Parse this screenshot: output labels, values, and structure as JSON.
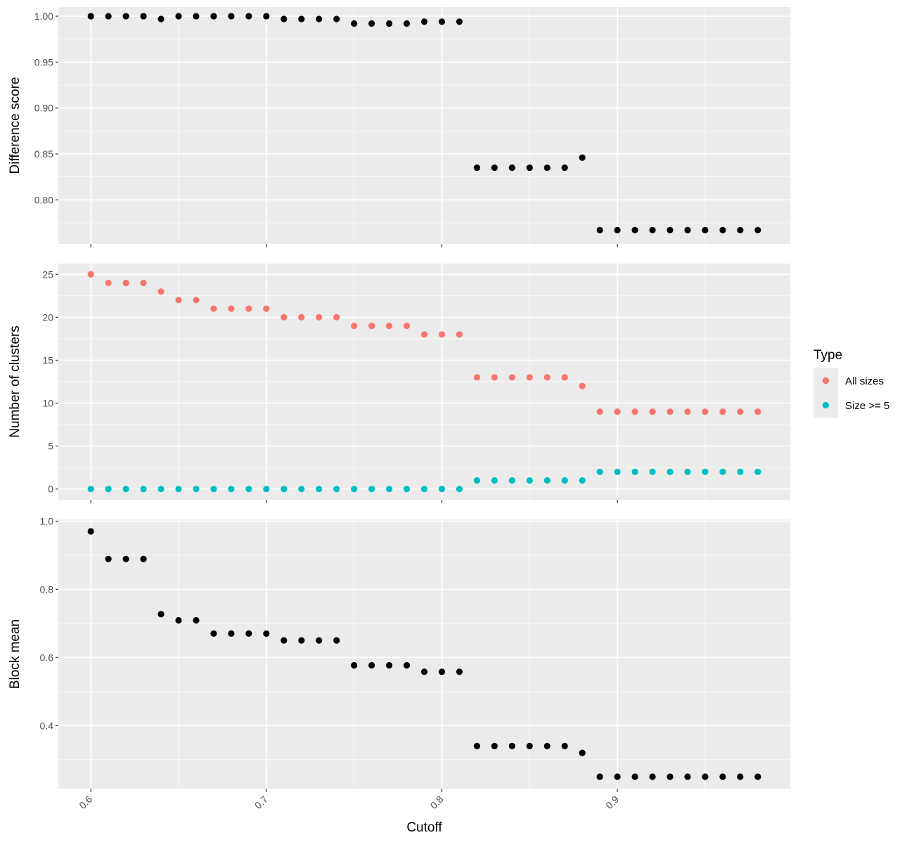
{
  "chart_data": [
    {
      "type": "scatter",
      "panel": "top",
      "ylabel": "Difference score",
      "xlim": [
        0.5815,
        0.9985
      ],
      "ylim": [
        0.752,
        1.01
      ],
      "y_ticks": [
        0.8,
        0.85,
        0.9,
        0.95,
        1.0
      ],
      "y_tick_labels": [
        "0.80",
        "0.85",
        "0.90",
        "0.95",
        "1.00"
      ],
      "grid": true,
      "point_color": "#000000",
      "x": [
        0.6,
        0.61,
        0.62,
        0.63,
        0.64,
        0.65,
        0.66,
        0.67,
        0.68,
        0.69,
        0.7,
        0.71,
        0.72,
        0.73,
        0.74,
        0.75,
        0.76,
        0.77,
        0.78,
        0.79,
        0.8,
        0.81,
        0.82,
        0.83,
        0.84,
        0.85,
        0.86,
        0.87,
        0.88,
        0.89,
        0.9,
        0.91,
        0.92,
        0.93,
        0.94,
        0.95,
        0.96,
        0.97,
        0.98
      ],
      "y": [
        1.0,
        1.0,
        1.0,
        1.0,
        0.997,
        1.0,
        1.0,
        1.0,
        1.0,
        1.0,
        1.0,
        0.997,
        0.997,
        0.997,
        0.997,
        0.992,
        0.992,
        0.992,
        0.992,
        0.994,
        0.994,
        0.994,
        0.835,
        0.835,
        0.835,
        0.835,
        0.835,
        0.835,
        0.846,
        0.767,
        0.767,
        0.767,
        0.767,
        0.767,
        0.767,
        0.767,
        0.767,
        0.767,
        0.767
      ]
    },
    {
      "type": "scatter",
      "panel": "middle",
      "ylabel": "Number of clusters",
      "xlim": [
        0.5815,
        0.9985
      ],
      "ylim": [
        -1.25,
        26.25
      ],
      "y_ticks": [
        0,
        5,
        10,
        15,
        20,
        25
      ],
      "y_tick_labels": [
        "0",
        "5",
        "10",
        "15",
        "20",
        "25"
      ],
      "grid": true,
      "series": [
        {
          "name": "All sizes",
          "color": "#F8766D",
          "x": [
            0.6,
            0.61,
            0.62,
            0.63,
            0.64,
            0.65,
            0.66,
            0.67,
            0.68,
            0.69,
            0.7,
            0.71,
            0.72,
            0.73,
            0.74,
            0.75,
            0.76,
            0.77,
            0.78,
            0.79,
            0.8,
            0.81,
            0.82,
            0.83,
            0.84,
            0.85,
            0.86,
            0.87,
            0.88,
            0.89,
            0.9,
            0.91,
            0.92,
            0.93,
            0.94,
            0.95,
            0.96,
            0.97,
            0.98
          ],
          "y": [
            25,
            24,
            24,
            24,
            23,
            22,
            22,
            21,
            21,
            21,
            21,
            20,
            20,
            20,
            20,
            19,
            19,
            19,
            19,
            18,
            18,
            18,
            13,
            13,
            13,
            13,
            13,
            13,
            12,
            9,
            9,
            9,
            9,
            9,
            9,
            9,
            9,
            9,
            9
          ]
        },
        {
          "name": "Size >= 5",
          "color": "#00BFC4",
          "x": [
            0.6,
            0.61,
            0.62,
            0.63,
            0.64,
            0.65,
            0.66,
            0.67,
            0.68,
            0.69,
            0.7,
            0.71,
            0.72,
            0.73,
            0.74,
            0.75,
            0.76,
            0.77,
            0.78,
            0.79,
            0.8,
            0.81,
            0.82,
            0.83,
            0.84,
            0.85,
            0.86,
            0.87,
            0.88,
            0.89,
            0.9,
            0.91,
            0.92,
            0.93,
            0.94,
            0.95,
            0.96,
            0.97,
            0.98
          ],
          "y": [
            0,
            0,
            0,
            0,
            0,
            0,
            0,
            0,
            0,
            0,
            0,
            0,
            0,
            0,
            0,
            0,
            0,
            0,
            0,
            0,
            0,
            0,
            1,
            1,
            1,
            1,
            1,
            1,
            1,
            2,
            2,
            2,
            2,
            2,
            2,
            2,
            2,
            2,
            2
          ]
        }
      ],
      "legend": {
        "title": "Type",
        "placement": "right",
        "entries": [
          {
            "label": "All sizes",
            "color": "#F8766D"
          },
          {
            "label": "Size >= 5",
            "color": "#00BFC4"
          }
        ]
      }
    },
    {
      "type": "scatter",
      "panel": "bottom",
      "ylabel": "Block mean",
      "xlabel": "Cutoff",
      "xlim": [
        0.5815,
        0.9985
      ],
      "ylim": [
        0.215,
        1.005
      ],
      "x_ticks": [
        0.6,
        0.7,
        0.8,
        0.9
      ],
      "x_tick_labels": [
        "0.6",
        "0.7",
        "0.8",
        "0.9"
      ],
      "x_tick_label_rotation": -45,
      "y_ticks": [
        0.4,
        0.6,
        0.8,
        1.0
      ],
      "y_tick_labels": [
        "0.4",
        "0.6",
        "0.8",
        "1.0"
      ],
      "grid": true,
      "point_color": "#000000",
      "x": [
        0.6,
        0.61,
        0.62,
        0.63,
        0.64,
        0.65,
        0.66,
        0.67,
        0.68,
        0.69,
        0.7,
        0.71,
        0.72,
        0.73,
        0.74,
        0.75,
        0.76,
        0.77,
        0.78,
        0.79,
        0.8,
        0.81,
        0.82,
        0.83,
        0.84,
        0.85,
        0.86,
        0.87,
        0.88,
        0.89,
        0.9,
        0.91,
        0.92,
        0.93,
        0.94,
        0.95,
        0.96,
        0.97,
        0.98
      ],
      "y": [
        0.97,
        0.889,
        0.889,
        0.889,
        0.727,
        0.709,
        0.709,
        0.67,
        0.67,
        0.67,
        0.67,
        0.65,
        0.65,
        0.65,
        0.65,
        0.577,
        0.577,
        0.577,
        0.577,
        0.558,
        0.558,
        0.558,
        0.34,
        0.34,
        0.34,
        0.34,
        0.34,
        0.34,
        0.32,
        0.25,
        0.25,
        0.25,
        0.25,
        0.25,
        0.25,
        0.25,
        0.25,
        0.25,
        0.25
      ]
    }
  ]
}
